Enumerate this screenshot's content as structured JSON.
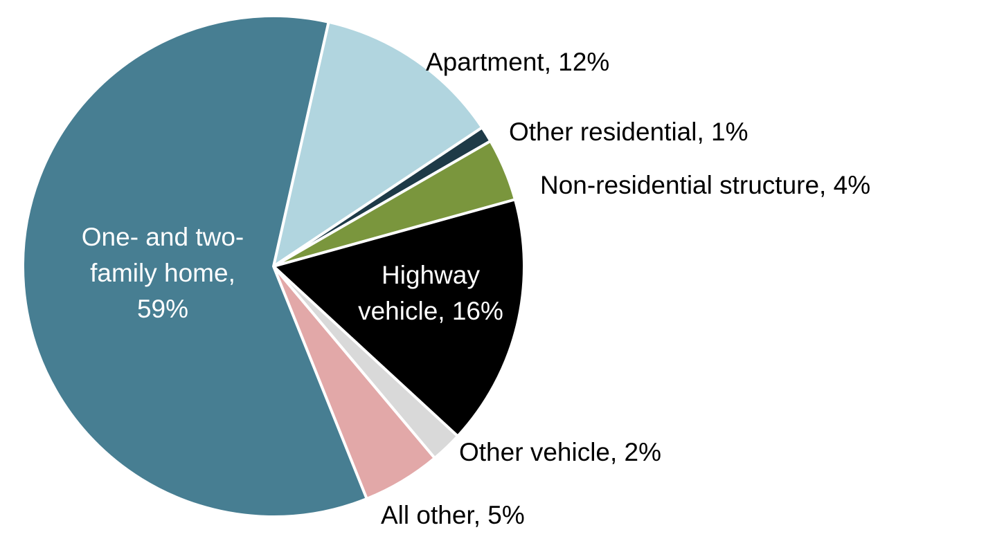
{
  "chart_data": {
    "type": "pie",
    "title": "",
    "slices": [
      {
        "label": "Apartment, 12%",
        "name": "Apartment",
        "value": 12,
        "color": "#b1d5df"
      },
      {
        "label": "Other residential, 1%",
        "name": "Other residential",
        "value": 1,
        "color": "#1e3a47"
      },
      {
        "label": "Non-residential structure, 4%",
        "name": "Non-residential structure",
        "value": 4,
        "color": "#7a963d"
      },
      {
        "label": "Highway vehicle, 16%",
        "name": "Highway vehicle",
        "value": 16,
        "color": "#000000"
      },
      {
        "label": "Other vehicle, 2%",
        "name": "Other vehicle",
        "value": 2,
        "color": "#d9d9d9"
      },
      {
        "label": "All other, 5%",
        "name": "All other",
        "value": 5,
        "color": "#e2a8a8"
      },
      {
        "label": "One- and two-family home, 59%",
        "name": "One- and two-family home",
        "value": 59,
        "color": "#477e92"
      }
    ],
    "label_lines": [
      [
        "Apartment, 12%"
      ],
      [
        "Other residential, 1%"
      ],
      [
        "Non-residential structure, 4%"
      ],
      [
        "Highway",
        "vehicle, 16%"
      ],
      [
        "Other vehicle, 2%"
      ],
      [
        "All other, 5%"
      ],
      [
        "One- and two-",
        "family home,",
        "59%"
      ]
    ],
    "legend": "none",
    "slice_border_color": "#ffffff"
  }
}
